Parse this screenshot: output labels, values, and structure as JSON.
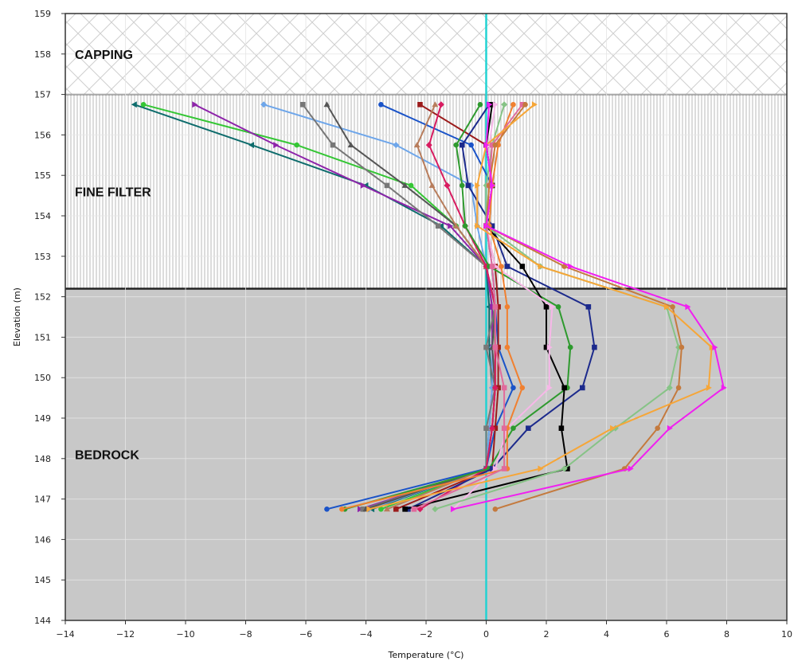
{
  "chart_data": {
    "type": "line",
    "title": "",
    "xlabel": "Temperature (°C)",
    "ylabel": "Elevation (m)",
    "xlim": [
      -14,
      10
    ],
    "ylim": [
      144,
      159
    ],
    "xticks": [
      "−14",
      "−12",
      "−10",
      "−8",
      "−6",
      "−4",
      "−2",
      "0",
      "2",
      "4",
      "6",
      "8",
      "10"
    ],
    "yticks": [
      "144",
      "145",
      "146",
      "147",
      "148",
      "149",
      "150",
      "151",
      "152",
      "153",
      "154",
      "155",
      "156",
      "157",
      "158",
      "159"
    ],
    "grid": true,
    "legend": "none",
    "zero_line_color": "#22d3d3",
    "zones": [
      {
        "label": "CAPPING",
        "from": 157,
        "to": 159,
        "pattern": "crosshatch",
        "color": "#d9d9d9"
      },
      {
        "label": "FINE FILTER",
        "from": 152.2,
        "to": 157,
        "pattern": "vertical-lines",
        "color": "#bfbfbf"
      },
      {
        "label": "BEDROCK",
        "from": 144,
        "to": 152.2,
        "pattern": "solid",
        "color": "#c8c8c8"
      }
    ],
    "series": [
      {
        "color": "#0e6c6c",
        "marker": "triangle-left",
        "points": [
          [
            -11.7,
            156.75
          ],
          [
            -7.8,
            155.75
          ],
          [
            -4.0,
            154.75
          ],
          [
            -1.5,
            153.75
          ],
          [
            0.0,
            152.75
          ],
          [
            0.1,
            151.75
          ],
          [
            0.1,
            150.75
          ],
          [
            0.2,
            149.75
          ],
          [
            0.1,
            148.75
          ],
          [
            0.0,
            147.75
          ],
          [
            -3.8,
            146.75
          ]
        ]
      },
      {
        "color": "#35c635",
        "marker": "circle",
        "points": [
          [
            -11.4,
            156.75
          ],
          [
            -6.3,
            155.75
          ],
          [
            -2.5,
            154.75
          ],
          [
            -1.0,
            153.75
          ],
          [
            0.0,
            152.75
          ],
          [
            0.2,
            151.75
          ],
          [
            0.3,
            150.75
          ],
          [
            0.3,
            149.75
          ],
          [
            0.2,
            148.75
          ],
          [
            0.0,
            147.75
          ],
          [
            -3.5,
            146.75
          ]
        ]
      },
      {
        "color": "#8e24aa",
        "marker": "triangle-right",
        "points": [
          [
            -9.7,
            156.75
          ],
          [
            -7.0,
            155.75
          ],
          [
            -4.1,
            154.75
          ],
          [
            -1.2,
            153.75
          ],
          [
            0.0,
            152.75
          ],
          [
            0.2,
            151.75
          ],
          [
            0.2,
            150.75
          ],
          [
            0.3,
            149.75
          ],
          [
            0.2,
            148.75
          ],
          [
            0.0,
            147.75
          ],
          [
            -4.2,
            146.75
          ]
        ]
      },
      {
        "color": "#6ea6ea",
        "marker": "diamond",
        "points": [
          [
            -7.4,
            156.75
          ],
          [
            -3.0,
            155.75
          ],
          [
            -0.5,
            154.75
          ],
          [
            -0.3,
            153.75
          ],
          [
            0.0,
            152.75
          ],
          [
            0.3,
            151.75
          ],
          [
            0.2,
            150.75
          ],
          [
            0.2,
            149.75
          ],
          [
            0.1,
            148.75
          ],
          [
            0.0,
            147.75
          ],
          [
            -3.9,
            146.75
          ]
        ]
      },
      {
        "color": "#777777",
        "marker": "square",
        "points": [
          [
            -6.1,
            156.75
          ],
          [
            -5.1,
            155.75
          ],
          [
            -3.3,
            154.75
          ],
          [
            -1.6,
            153.75
          ],
          [
            0.0,
            152.75
          ],
          [
            0.3,
            151.75
          ],
          [
            0.0,
            150.75
          ],
          [
            0.3,
            149.75
          ],
          [
            0.0,
            148.75
          ],
          [
            0.0,
            147.75
          ],
          [
            -4.1,
            146.75
          ]
        ]
      },
      {
        "color": "#555555",
        "marker": "triangle-up",
        "points": [
          [
            -5.3,
            156.75
          ],
          [
            -4.5,
            155.75
          ],
          [
            -2.7,
            154.75
          ],
          [
            -1.0,
            153.75
          ],
          [
            0.0,
            152.75
          ],
          [
            0.3,
            151.75
          ],
          [
            0.2,
            150.75
          ],
          [
            0.3,
            149.75
          ],
          [
            0.2,
            148.75
          ],
          [
            0.0,
            147.75
          ],
          [
            -4.0,
            146.75
          ]
        ]
      },
      {
        "color": "#1a53c8",
        "marker": "circle",
        "points": [
          [
            -3.5,
            156.75
          ],
          [
            -0.5,
            155.75
          ],
          [
            0.2,
            154.75
          ],
          [
            0.0,
            153.75
          ],
          [
            0.2,
            152.75
          ],
          [
            0.3,
            151.75
          ],
          [
            0.4,
            150.75
          ],
          [
            0.9,
            149.75
          ],
          [
            0.3,
            148.75
          ],
          [
            0.0,
            147.75
          ],
          [
            -5.3,
            146.75
          ]
        ]
      },
      {
        "color": "#9b1b1b",
        "marker": "square",
        "points": [
          [
            -2.2,
            156.75
          ],
          [
            0.0,
            155.75
          ],
          [
            0.2,
            154.75
          ],
          [
            0.0,
            153.75
          ],
          [
            0.3,
            152.75
          ],
          [
            0.4,
            151.75
          ],
          [
            0.4,
            150.75
          ],
          [
            0.4,
            149.75
          ],
          [
            0.3,
            148.75
          ],
          [
            0.2,
            147.75
          ],
          [
            -3.0,
            146.75
          ]
        ]
      },
      {
        "color": "#b87d5c",
        "marker": "triangle-up",
        "points": [
          [
            -1.7,
            156.75
          ],
          [
            -2.3,
            155.75
          ],
          [
            -1.8,
            154.75
          ],
          [
            -1.0,
            153.75
          ],
          [
            0.0,
            152.75
          ],
          [
            0.3,
            151.75
          ],
          [
            0.3,
            150.75
          ],
          [
            0.3,
            149.75
          ],
          [
            0.2,
            148.75
          ],
          [
            0.0,
            147.75
          ],
          [
            -3.3,
            146.75
          ]
        ]
      },
      {
        "color": "#d81b60",
        "marker": "diamond",
        "points": [
          [
            -1.5,
            156.75
          ],
          [
            -1.9,
            155.75
          ],
          [
            -1.3,
            154.75
          ],
          [
            -0.7,
            153.75
          ],
          [
            0.0,
            152.75
          ],
          [
            0.3,
            151.75
          ],
          [
            0.3,
            150.75
          ],
          [
            0.3,
            149.75
          ],
          [
            0.2,
            148.75
          ],
          [
            0.0,
            147.75
          ],
          [
            -2.2,
            146.75
          ]
        ]
      },
      {
        "color": "#2e9a2e",
        "marker": "circle",
        "points": [
          [
            -0.2,
            156.75
          ],
          [
            -1.0,
            155.75
          ],
          [
            -0.8,
            154.75
          ],
          [
            -0.7,
            153.75
          ],
          [
            0.1,
            152.75
          ],
          [
            2.4,
            151.75
          ],
          [
            2.8,
            150.75
          ],
          [
            2.7,
            149.75
          ],
          [
            0.9,
            148.75
          ],
          [
            0.1,
            147.75
          ],
          [
            -4.7,
            146.75
          ]
        ]
      },
      {
        "color": "#1c2a8c",
        "marker": "square",
        "points": [
          [
            0.1,
            156.75
          ],
          [
            -0.8,
            155.75
          ],
          [
            -0.6,
            154.75
          ],
          [
            0.2,
            153.75
          ],
          [
            0.7,
            152.75
          ],
          [
            3.4,
            151.75
          ],
          [
            3.6,
            150.75
          ],
          [
            3.2,
            149.75
          ],
          [
            1.4,
            148.75
          ],
          [
            0.2,
            147.75
          ],
          [
            -2.6,
            146.75
          ]
        ]
      },
      {
        "color": "#000000",
        "marker": "square",
        "points": [
          [
            0.2,
            156.75
          ],
          [
            0.0,
            155.75
          ],
          [
            0.2,
            154.75
          ],
          [
            0.0,
            153.75
          ],
          [
            1.2,
            152.75
          ],
          [
            2.0,
            151.75
          ],
          [
            2.0,
            150.75
          ],
          [
            2.6,
            149.75
          ],
          [
            2.5,
            148.75
          ],
          [
            2.7,
            147.75
          ],
          [
            -2.7,
            146.75
          ]
        ]
      },
      {
        "color": "#f7b7e8",
        "marker": "triangle-right",
        "points": [
          [
            0.3,
            156.75
          ],
          [
            0.1,
            155.75
          ],
          [
            0.2,
            154.75
          ],
          [
            0.0,
            153.75
          ],
          [
            0.3,
            152.75
          ],
          [
            2.2,
            151.75
          ],
          [
            2.1,
            150.75
          ],
          [
            2.1,
            149.75
          ],
          [
            0.7,
            148.75
          ],
          [
            0.3,
            147.75
          ],
          [
            -1.1,
            146.75
          ]
        ]
      },
      {
        "color": "#86c386",
        "marker": "diamond",
        "points": [
          [
            0.6,
            156.75
          ],
          [
            0.2,
            155.75
          ],
          [
            0.0,
            154.75
          ],
          [
            0.0,
            153.75
          ],
          [
            1.8,
            152.75
          ],
          [
            6.0,
            151.75
          ],
          [
            6.4,
            150.75
          ],
          [
            6.1,
            149.75
          ],
          [
            4.3,
            148.75
          ],
          [
            2.6,
            147.75
          ],
          [
            -1.7,
            146.75
          ]
        ]
      },
      {
        "color": "#f08030",
        "marker": "circle",
        "points": [
          [
            0.9,
            156.75
          ],
          [
            0.4,
            155.75
          ],
          [
            0.2,
            154.75
          ],
          [
            0.1,
            153.75
          ],
          [
            0.5,
            152.75
          ],
          [
            0.7,
            151.75
          ],
          [
            0.7,
            150.75
          ],
          [
            1.2,
            149.75
          ],
          [
            0.7,
            148.75
          ],
          [
            0.7,
            147.75
          ],
          [
            -4.8,
            146.75
          ]
        ]
      },
      {
        "color": "#e06b9c",
        "marker": "square",
        "points": [
          [
            1.2,
            156.75
          ],
          [
            0.2,
            155.75
          ],
          [
            0.1,
            154.75
          ],
          [
            0.0,
            153.75
          ],
          [
            0.2,
            152.75
          ],
          [
            0.3,
            151.75
          ],
          [
            0.3,
            150.75
          ],
          [
            0.6,
            149.75
          ],
          [
            0.6,
            148.75
          ],
          [
            0.6,
            147.75
          ],
          [
            -2.4,
            146.75
          ]
        ]
      },
      {
        "color": "#c47a3e",
        "marker": "circle",
        "points": [
          [
            1.3,
            156.75
          ],
          [
            0.3,
            155.75
          ],
          [
            0.1,
            154.75
          ],
          [
            0.0,
            153.75
          ],
          [
            2.6,
            152.75
          ],
          [
            6.2,
            151.75
          ],
          [
            6.5,
            150.75
          ],
          [
            6.4,
            149.75
          ],
          [
            5.7,
            148.75
          ],
          [
            4.6,
            147.75
          ],
          [
            0.3,
            146.75
          ]
        ]
      },
      {
        "color": "#f6a638",
        "marker": "triangle-right",
        "points": [
          [
            1.6,
            156.75
          ],
          [
            0.0,
            155.75
          ],
          [
            -0.3,
            154.75
          ],
          [
            -0.3,
            153.75
          ],
          [
            1.8,
            152.75
          ],
          [
            6.0,
            151.75
          ],
          [
            7.5,
            150.75
          ],
          [
            7.4,
            149.75
          ],
          [
            4.2,
            148.75
          ],
          [
            1.8,
            147.75
          ],
          [
            -3.9,
            146.75
          ]
        ]
      },
      {
        "color": "#f020f0",
        "marker": "triangle-right",
        "points": [
          [
            0.1,
            156.75
          ],
          [
            0.0,
            155.75
          ],
          [
            0.2,
            154.75
          ],
          [
            0.0,
            153.75
          ],
          [
            2.8,
            152.75
          ],
          [
            6.7,
            151.75
          ],
          [
            7.6,
            150.75
          ],
          [
            7.9,
            149.75
          ],
          [
            6.1,
            148.75
          ],
          [
            4.8,
            147.75
          ],
          [
            -1.1,
            146.75
          ]
        ]
      }
    ]
  }
}
